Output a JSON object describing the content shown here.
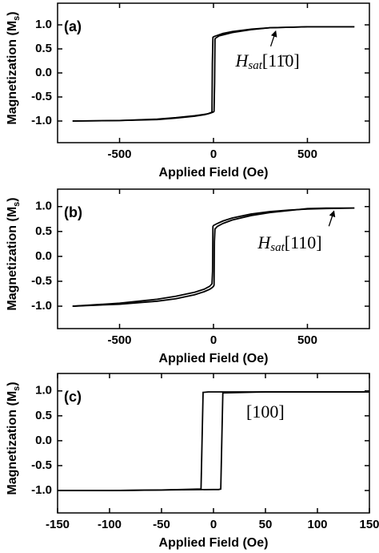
{
  "chart_data": [
    {
      "type": "line",
      "panel_label": "(a)",
      "xlabel": "Applied Field (Oe)",
      "ylabel": [
        "Magnetization (M",
        "s",
        ")"
      ],
      "xlim": [
        -830,
        830
      ],
      "ylim": [
        -1.45,
        1.45
      ],
      "xticks": [
        -500,
        0,
        500
      ],
      "yticks": [
        {
          "value": 1,
          "label": "1.0"
        },
        {
          "value": 0.5,
          "label": "0.5"
        },
        {
          "value": 0,
          "label": "0.0"
        },
        {
          "value": -0.5,
          "label": "-0.5"
        },
        {
          "value": -1,
          "label": "-1.0"
        }
      ],
      "annotation": {
        "parts": [
          "H",
          "sat",
          "[11̄0]"
        ],
        "x": 330,
        "y": 0.92
      },
      "series": [
        {
          "color": "#000000",
          "x": [
            750,
            500,
            300,
            200,
            100,
            50,
            20,
            5,
            0,
            -3,
            -6,
            -8,
            -10,
            -30,
            -100,
            -200,
            -300,
            -500,
            -750
          ],
          "values": [
            0.96,
            0.96,
            0.94,
            0.91,
            0.86,
            0.82,
            0.78,
            0.76,
            0.75,
            0.74,
            0.2,
            -0.8,
            -0.82,
            -0.85,
            -0.89,
            -0.93,
            -0.96,
            -0.99,
            -1.0
          ]
        },
        {
          "color": "#000000",
          "x": [
            -750,
            -500,
            -300,
            -200,
            -100,
            -50,
            -20,
            -5,
            0,
            3,
            6,
            8,
            10,
            30,
            100,
            200,
            300,
            500,
            750
          ],
          "values": [
            -1.0,
            -0.99,
            -0.97,
            -0.94,
            -0.9,
            -0.87,
            -0.84,
            -0.82,
            -0.81,
            -0.8,
            -0.2,
            0.7,
            0.72,
            0.77,
            0.84,
            0.9,
            0.94,
            0.96,
            0.96
          ]
        }
      ]
    },
    {
      "type": "line",
      "panel_label": "(b)",
      "xlabel": "Applied Field (Oe)",
      "ylabel": [
        "Magnetization (M",
        "s",
        ")"
      ],
      "xlim": [
        -830,
        830
      ],
      "ylim": [
        -1.45,
        1.35
      ],
      "xticks": [
        -500,
        0,
        500
      ],
      "yticks": [
        {
          "value": 1,
          "label": "1.0"
        },
        {
          "value": 0.5,
          "label": "0.5"
        },
        {
          "value": 0,
          "label": "0.0"
        },
        {
          "value": -0.5,
          "label": "-0.5"
        },
        {
          "value": -1,
          "label": "-1.0"
        }
      ],
      "annotation": {
        "parts": [
          "H",
          "sat",
          "[110]"
        ],
        "x": 640,
        "y": 0.96
      },
      "series": [
        {
          "color": "#000000",
          "x": [
            750,
            600,
            500,
            400,
            300,
            200,
            100,
            50,
            20,
            5,
            0,
            -3,
            -5,
            -8,
            -20,
            -50,
            -100,
            -200,
            -300,
            -500,
            -750
          ],
          "values": [
            0.97,
            0.96,
            0.95,
            0.93,
            0.9,
            0.85,
            0.77,
            0.71,
            0.66,
            0.63,
            0.62,
            0.6,
            -0.3,
            -0.55,
            -0.6,
            -0.66,
            -0.72,
            -0.8,
            -0.86,
            -0.94,
            -1.0
          ]
        },
        {
          "color": "#000000",
          "x": [
            -750,
            -500,
            -300,
            -200,
            -100,
            -50,
            -20,
            -8,
            -5,
            0,
            3,
            5,
            8,
            20,
            50,
            100,
            200,
            300,
            400,
            500,
            600,
            750
          ],
          "values": [
            -1.0,
            -0.96,
            -0.9,
            -0.85,
            -0.77,
            -0.71,
            -0.66,
            -0.63,
            -0.62,
            -0.6,
            -0.58,
            0.3,
            0.55,
            0.6,
            0.66,
            0.73,
            0.82,
            0.88,
            0.92,
            0.96,
            0.97,
            0.97
          ]
        }
      ]
    },
    {
      "type": "line",
      "panel_label": "(c)",
      "xlabel": "Applied Field (Oe)",
      "ylabel": [
        "Magnetization (M",
        "s",
        ")"
      ],
      "xlim": [
        -150,
        150
      ],
      "ylim": [
        -1.45,
        1.35
      ],
      "xticks": [
        -150,
        -100,
        -50,
        0,
        50,
        100,
        150
      ],
      "yticks": [
        {
          "value": 1,
          "label": "1.0"
        },
        {
          "value": 0.5,
          "label": "0.5"
        },
        {
          "value": 0,
          "label": "0.0"
        },
        {
          "value": -0.5,
          "label": "-0.5"
        },
        {
          "value": -1,
          "label": "-1.0"
        }
      ],
      "annotation": {
        "parts": [
          "[100]"
        ]
      },
      "series": [
        {
          "color": "#000000",
          "x": [
            150,
            100,
            50,
            0,
            -5,
            -10,
            -11,
            -12,
            -50,
            -100,
            -150
          ],
          "values": [
            0.98,
            0.98,
            0.98,
            0.98,
            0.98,
            0.97,
            0,
            -0.97,
            -0.99,
            -1.0,
            -1.0
          ]
        },
        {
          "color": "#000000",
          "x": [
            -150,
            -100,
            -50,
            0,
            5,
            7,
            8,
            9,
            50,
            100,
            150
          ],
          "values": [
            -1.0,
            -1.0,
            -0.99,
            -0.98,
            -0.98,
            -0.97,
            0,
            0.96,
            0.98,
            0.98,
            0.98
          ]
        }
      ]
    }
  ]
}
